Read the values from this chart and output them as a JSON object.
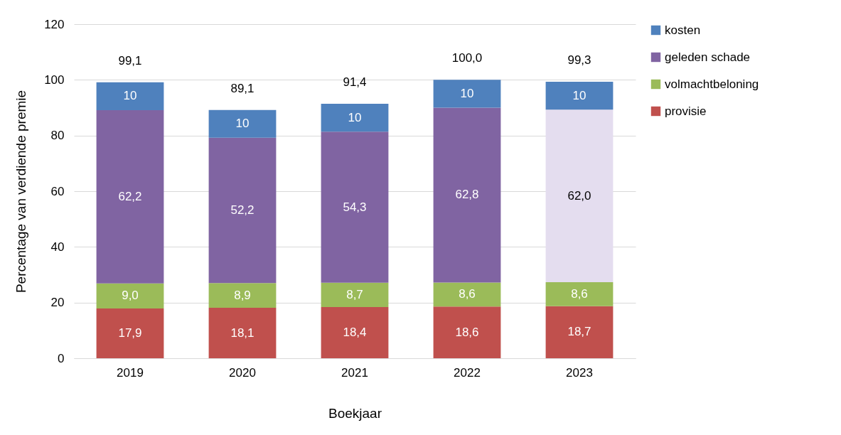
{
  "chart_data": {
    "type": "bar",
    "stacked": true,
    "xlabel": "Boekjaar",
    "ylabel": "Percentage van verdiende premie",
    "categories": [
      "2019",
      "2020",
      "2021",
      "2022",
      "2023"
    ],
    "series": [
      {
        "name": "provisie",
        "color": "#c0504d",
        "values": [
          17.9,
          18.1,
          18.4,
          18.6,
          18.7
        ],
        "value_labels": [
          "17,9",
          "18,1",
          "18,4",
          "18,6",
          "18,7"
        ]
      },
      {
        "name": "volmachtbeloning",
        "color": "#9bbb59",
        "values": [
          9.0,
          8.9,
          8.7,
          8.6,
          8.6
        ],
        "value_labels": [
          "9,0",
          "8,9",
          "8,7",
          "8,6",
          "8,6"
        ]
      },
      {
        "name": "geleden schade",
        "color": "#8064a2",
        "colors": [
          "#8064a2",
          "#8064a2",
          "#8064a2",
          "#8064a2",
          "#e4ddef"
        ],
        "values": [
          62.2,
          52.2,
          54.3,
          62.8,
          62.0
        ],
        "value_labels": [
          "62,2",
          "52,2",
          "54,3",
          "62,8",
          "62,0"
        ]
      },
      {
        "name": "kosten",
        "color": "#4f81bd",
        "values": [
          10,
          10,
          10,
          10,
          10
        ],
        "value_labels": [
          "10",
          "10",
          "10",
          "10",
          "10"
        ]
      }
    ],
    "totals": [
      "99,1",
      "89,1",
      "91,4",
      "100,0",
      "99,3"
    ],
    "ylim": [
      0,
      120
    ],
    "yticks": [
      0,
      20,
      40,
      60,
      80,
      100,
      120
    ],
    "grid": "y",
    "legend": "right"
  }
}
